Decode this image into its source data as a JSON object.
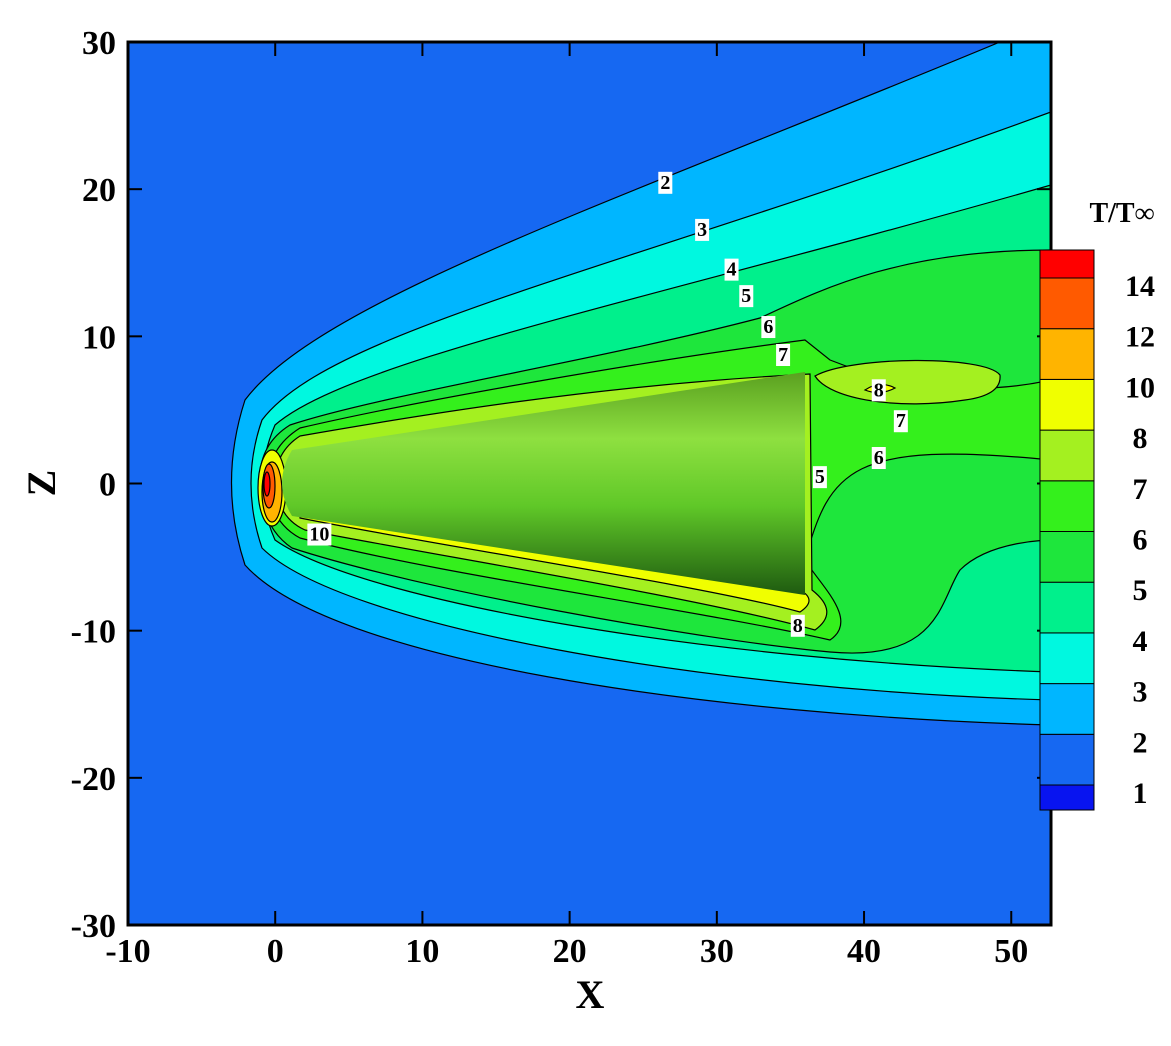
{
  "chart_data": {
    "type": "contour",
    "x_label": "X",
    "y_label": "Z",
    "xlim": [
      -10,
      52.7
    ],
    "ylim": [
      -30,
      30
    ],
    "xticks": [
      -10,
      0,
      10,
      20,
      30,
      40,
      50
    ],
    "yticks": [
      -30,
      -20,
      -10,
      0,
      10,
      20,
      30
    ],
    "colorbar": {
      "title": "T/T∞",
      "levels": [
        1,
        2,
        3,
        4,
        5,
        6,
        7,
        8,
        10,
        12,
        14
      ],
      "colors": [
        "#0814f0",
        "#1668f2",
        "#00b6ff",
        "#00f8e0",
        "#00f08c",
        "#1ee63c",
        "#34f01c",
        "#a4f020",
        "#f0ff00",
        "#ffb400",
        "#ff5a00",
        "#ff0000"
      ]
    },
    "contour_labels": [
      {
        "value": 2,
        "x": 26.5,
        "y": 20.5
      },
      {
        "value": 3,
        "x": 29,
        "y": 17.3
      },
      {
        "value": 4,
        "x": 31,
        "y": 14.6
      },
      {
        "value": 5,
        "x": 32,
        "y": 12.8
      },
      {
        "value": 6,
        "x": 33.5,
        "y": 10.7
      },
      {
        "value": 7,
        "x": 34.5,
        "y": 8.8
      },
      {
        "value": 8,
        "x": 41,
        "y": 6.4
      },
      {
        "value": 7,
        "x": 42.5,
        "y": 4.3
      },
      {
        "value": 6,
        "x": 41,
        "y": 1.8
      },
      {
        "value": 5,
        "x": 37,
        "y": 0.5
      },
      {
        "value": 10,
        "x": 3,
        "y": -3.4
      },
      {
        "value": 8,
        "x": 35.5,
        "y": -9.6
      }
    ]
  }
}
